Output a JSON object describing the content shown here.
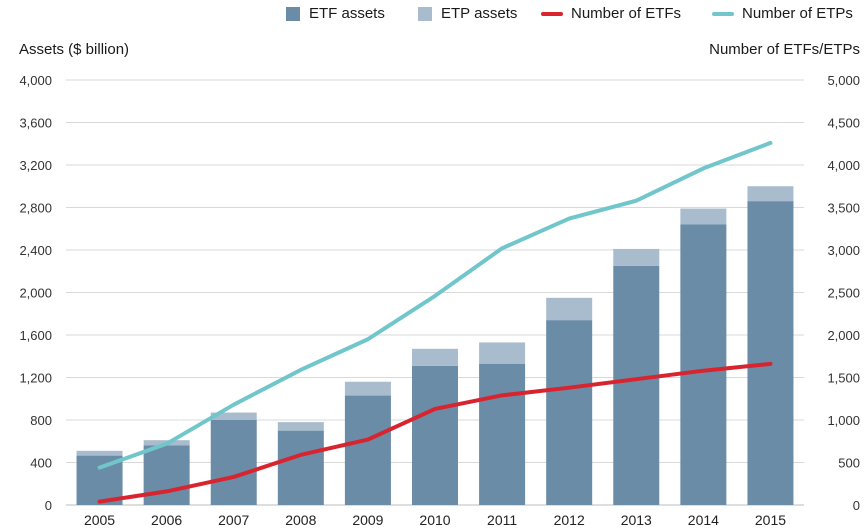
{
  "legend": [
    {
      "label": "ETF assets",
      "kind": "box",
      "color": "#6a8ca7"
    },
    {
      "label": "ETP assets",
      "kind": "box",
      "color": "#a9bccd"
    },
    {
      "label": "Number of ETFs",
      "kind": "line",
      "color": "#d8242f"
    },
    {
      "label": "Number of ETPs",
      "kind": "line",
      "color": "#70c6cb"
    }
  ],
  "axes": {
    "left_title": "Assets ($ billion)",
    "right_title": "Number of ETFs/ETPs"
  },
  "chart_data": {
    "type": "bar",
    "categories": [
      "2005",
      "2006",
      "2007",
      "2008",
      "2009",
      "2010",
      "2011",
      "2012",
      "2013",
      "2014",
      "2015"
    ],
    "series": [
      {
        "name": "ETF assets",
        "axis": "left",
        "kind": "stacked-bar",
        "color": "#6a8ca7",
        "values": [
          465,
          560,
          800,
          700,
          1030,
          1310,
          1330,
          1740,
          2250,
          2640,
          2860
        ]
      },
      {
        "name": "ETP assets",
        "axis": "left",
        "kind": "stacked-bar",
        "color": "#a9bccd",
        "values": [
          45,
          50,
          70,
          80,
          130,
          160,
          200,
          210,
          160,
          150,
          140
        ]
      },
      {
        "name": "Number of ETFs",
        "axis": "right",
        "kind": "line",
        "color": "#d8242f",
        "values": [
          40,
          160,
          330,
          590,
          770,
          1130,
          1290,
          1380,
          1480,
          1580,
          1660
        ]
      },
      {
        "name": "Number of ETPs",
        "axis": "right",
        "kind": "line",
        "color": "#70c6cb",
        "values": [
          440,
          720,
          1180,
          1590,
          1950,
          2460,
          3020,
          3370,
          3580,
          3960,
          4260
        ]
      }
    ],
    "ylabel": "Assets ($ billion)",
    "y2label": "Number of ETFs/ETPs",
    "ylim": [
      0,
      4000
    ],
    "y2lim": [
      0,
      5000
    ],
    "yticks": [
      "0",
      "400",
      "800",
      "1,200",
      "1,600",
      "2,000",
      "2,400",
      "2,800",
      "3,200",
      "3,600",
      "4,000"
    ],
    "y2ticks": [
      "0",
      "500",
      "1,000",
      "1,500",
      "2,000",
      "2,500",
      "3,000",
      "3,500",
      "4,000",
      "4,500",
      "5,000"
    ],
    "grid": true
  }
}
